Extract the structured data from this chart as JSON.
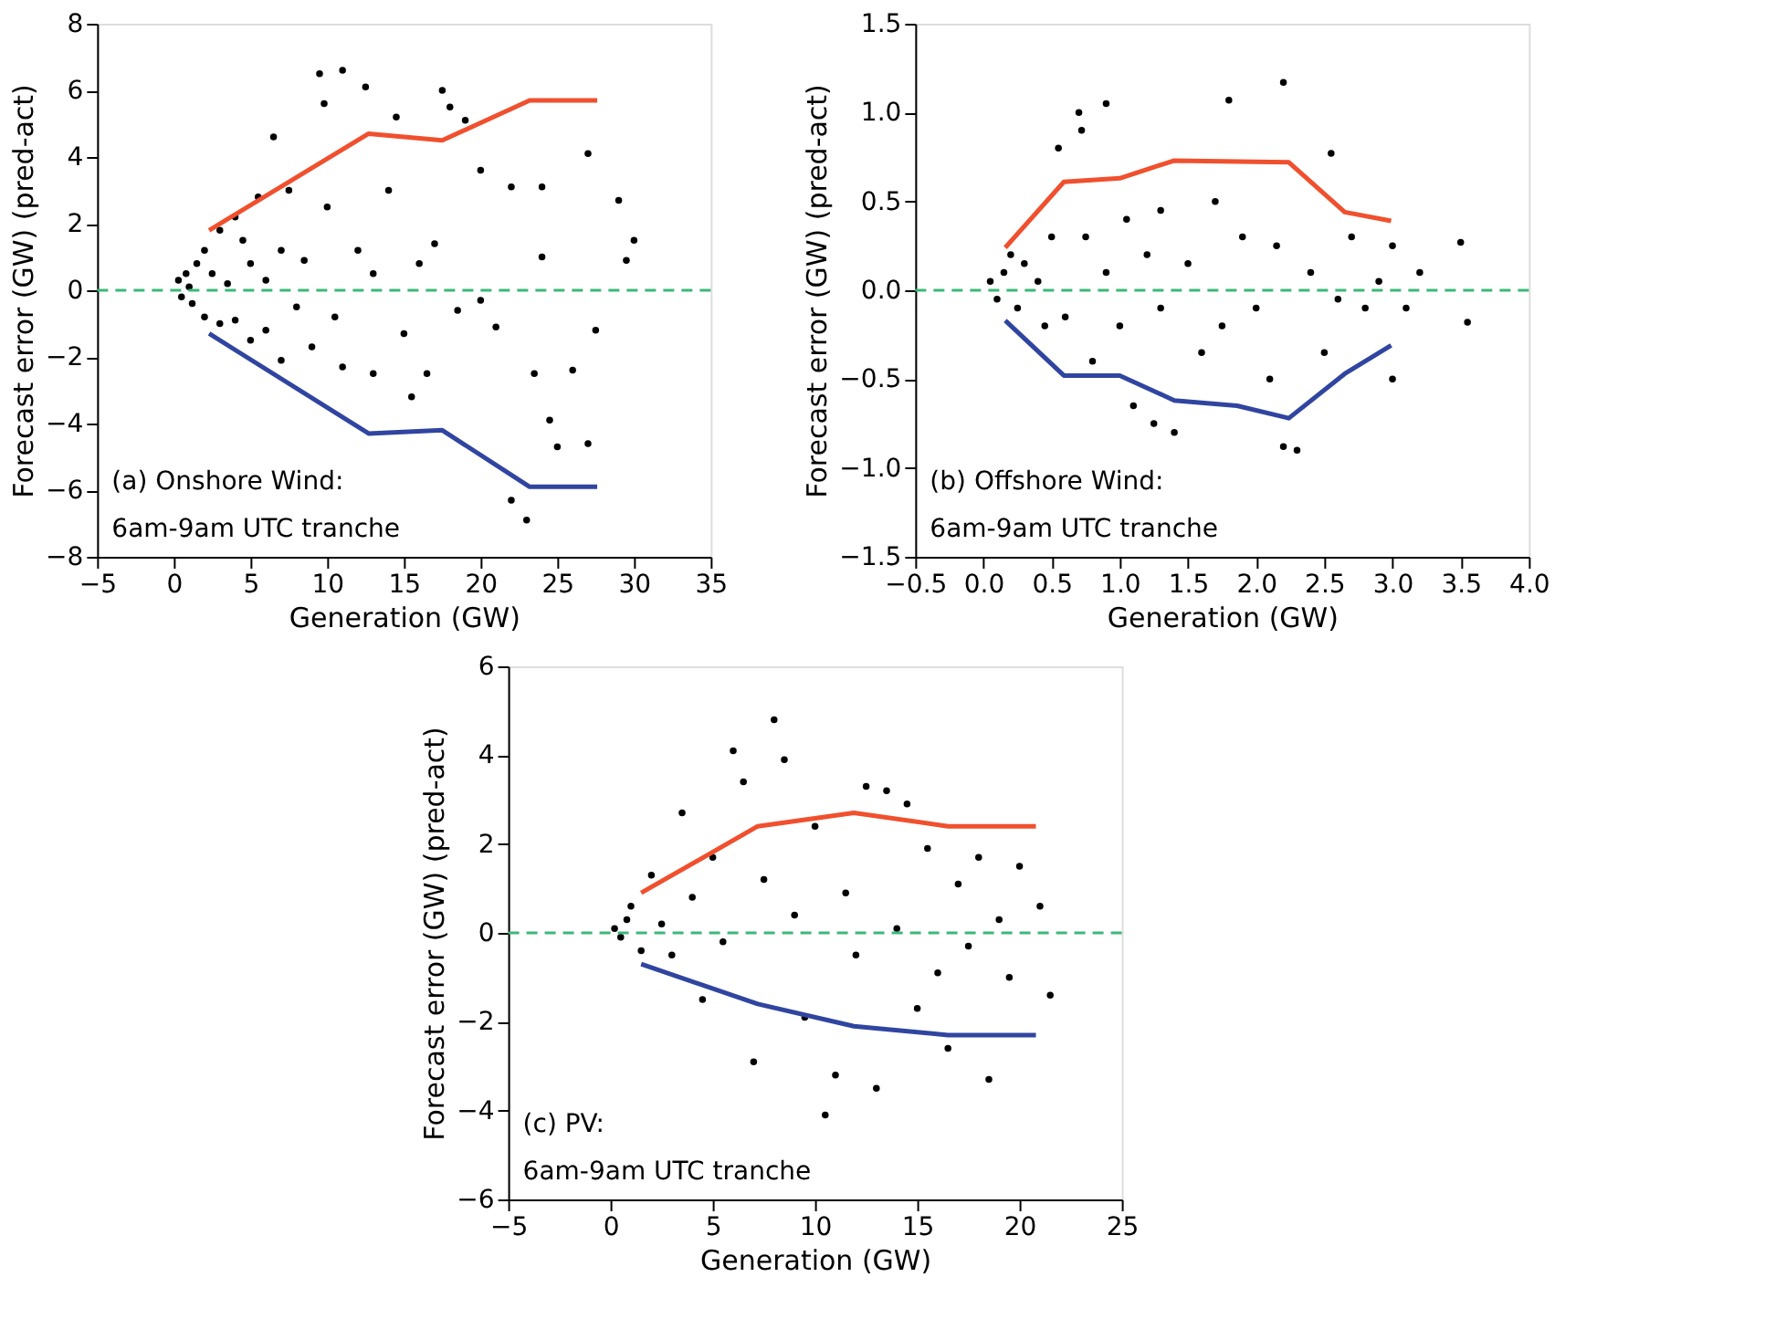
{
  "chart_data": [
    {
      "type": "scatter",
      "xlabel": "Generation (GW)",
      "ylabel": "Forecast error (GW) (pred-act)",
      "annotations": [
        "(a) Onshore Wind:",
        "6am-9am UTC tranche"
      ],
      "xlim": [
        -5,
        35
      ],
      "xticks": [
        -5,
        0,
        5,
        10,
        15,
        20,
        25,
        30,
        35
      ],
      "ylim": [
        -8,
        8
      ],
      "yticks": [
        -8,
        -6,
        -4,
        -2,
        0,
        2,
        4,
        6,
        8
      ],
      "grid": false,
      "ref_lines": [
        {
          "axis": "y",
          "value": 0,
          "color": "#3cb878",
          "line_style": "dashed"
        }
      ],
      "series": [
        {
          "type": "scatter",
          "color": "#000000",
          "x": [
            0.3,
            0.5,
            0.8,
            1,
            1.2,
            1.5,
            2,
            2,
            2.5,
            3,
            3,
            3.5,
            4,
            4,
            4.5,
            5,
            5,
            5.5,
            6,
            6,
            6.5,
            7,
            7,
            7.5,
            8,
            8.5,
            9,
            9.5,
            9.8,
            10,
            10.5,
            11,
            11,
            12,
            12.5,
            13,
            13,
            14,
            14.5,
            15,
            15.5,
            16,
            16.5,
            17,
            17.5,
            18,
            18.5,
            19,
            20,
            20,
            21,
            22,
            22,
            23,
            23.5,
            24,
            24,
            24.5,
            25,
            26,
            27,
            27,
            27.5,
            29,
            30,
            29.5
          ],
          "values": [
            0.3,
            -0.2,
            0.5,
            0.1,
            -0.4,
            0.8,
            1.2,
            -0.8,
            0.5,
            1.8,
            -1,
            0.2,
            2.2,
            -0.9,
            1.5,
            0.8,
            -1.5,
            2.8,
            0.3,
            -1.2,
            4.6,
            1.2,
            -2.1,
            3,
            -0.5,
            0.9,
            -1.7,
            6.5,
            5.6,
            2.5,
            -0.8,
            6.6,
            -2.3,
            1.2,
            6.1,
            0.5,
            -2.5,
            3,
            5.2,
            -1.3,
            -3.2,
            0.8,
            -2.5,
            1.4,
            6,
            5.5,
            -0.6,
            5.1,
            3.6,
            -0.3,
            -1.1,
            3.1,
            -6.3,
            -6.9,
            -2.5,
            3.1,
            1,
            -3.9,
            -4.7,
            -2.4,
            4.1,
            -4.6,
            -1.2,
            2.7,
            1.5,
            0.9
          ]
        },
        {
          "type": "line",
          "color": "#f0502e",
          "x": [
            2.3,
            12.7,
            17.5,
            23.2,
            27.6
          ],
          "values": [
            1.8,
            4.7,
            4.5,
            5.7,
            5.7
          ]
        },
        {
          "type": "line",
          "color": "#3045a0",
          "x": [
            2.3,
            12.7,
            17.5,
            23.2,
            27.6
          ],
          "values": [
            -1.3,
            -4.3,
            -4.2,
            -5.9,
            -5.9
          ]
        }
      ]
    },
    {
      "type": "scatter",
      "xlabel": "Generation (GW)",
      "ylabel": "Forecast error (GW) (pred-act)",
      "annotations": [
        "(b) Offshore Wind:",
        "6am-9am UTC tranche"
      ],
      "xlim": [
        -0.5,
        4
      ],
      "xticks": [
        {
          "value": -0.5,
          "label": "−0.5"
        },
        {
          "value": 0,
          "label": "0.0"
        },
        {
          "value": 0.5,
          "label": "0.5"
        },
        {
          "value": 1,
          "label": "1.0"
        },
        {
          "value": 1.5,
          "label": "1.5"
        },
        {
          "value": 2,
          "label": "2.0"
        },
        {
          "value": 2.5,
          "label": "2.5"
        },
        {
          "value": 3,
          "label": "3.0"
        },
        {
          "value": 3.5,
          "label": "3.5"
        },
        {
          "value": 4,
          "label": "4.0"
        }
      ],
      "ylim": [
        -1.5,
        1.5
      ],
      "yticks": [
        {
          "value": -1.5,
          "label": "−1.5"
        },
        {
          "value": -1,
          "label": "−1.0"
        },
        {
          "value": -0.5,
          "label": "−0.5"
        },
        {
          "value": 0,
          "label": "0.0"
        },
        {
          "value": 0.5,
          "label": "0.5"
        },
        {
          "value": 1,
          "label": "1.0"
        },
        {
          "value": 1.5,
          "label": "1.5"
        }
      ],
      "grid": false,
      "ref_lines": [
        {
          "axis": "y",
          "value": 0,
          "color": "#3cb878",
          "line_style": "dashed"
        }
      ],
      "series": [
        {
          "type": "scatter",
          "color": "#000000",
          "x": [
            0.05,
            0.1,
            0.15,
            0.2,
            0.25,
            0.3,
            0.4,
            0.45,
            0.5,
            0.55,
            0.6,
            0.7,
            0.72,
            0.75,
            0.8,
            0.9,
            0.9,
            1.0,
            1.05,
            1.1,
            1.2,
            1.25,
            1.3,
            1.3,
            1.4,
            1.5,
            1.6,
            1.7,
            1.75,
            1.8,
            1.9,
            2.0,
            2.1,
            2.15,
            2.2,
            2.2,
            2.3,
            2.4,
            2.5,
            2.55,
            2.6,
            2.7,
            2.8,
            2.9,
            3.0,
            3.0,
            3.1,
            3.2,
            3.5,
            3.55
          ],
          "values": [
            0.05,
            -0.05,
            0.1,
            0.2,
            -0.1,
            0.15,
            0.05,
            -0.2,
            0.3,
            0.8,
            -0.15,
            1.0,
            0.9,
            0.3,
            -0.4,
            1.05,
            0.1,
            -0.2,
            0.4,
            -0.65,
            0.2,
            -0.75,
            0.45,
            -0.1,
            -0.8,
            0.15,
            -0.35,
            0.5,
            -0.2,
            1.07,
            0.3,
            -0.1,
            -0.5,
            0.25,
            1.17,
            -0.88,
            -0.9,
            0.1,
            -0.35,
            0.77,
            -0.05,
            0.3,
            -0.1,
            0.05,
            0.25,
            -0.5,
            -0.1,
            0.1,
            0.27,
            -0.18
          ]
        },
        {
          "type": "line",
          "color": "#f0502e",
          "x": [
            0.16,
            0.59,
            1.0,
            1.4,
            2.24,
            2.65,
            2.99
          ],
          "values": [
            0.24,
            0.61,
            0.63,
            0.73,
            0.72,
            0.44,
            0.39
          ]
        },
        {
          "type": "line",
          "color": "#3045a0",
          "x": [
            0.16,
            0.59,
            1.0,
            1.4,
            1.86,
            2.24,
            2.65,
            2.99
          ],
          "values": [
            -0.17,
            -0.48,
            -0.48,
            -0.62,
            -0.65,
            -0.72,
            -0.47,
            -0.31
          ]
        }
      ]
    },
    {
      "type": "scatter",
      "xlabel": "Generation (GW)",
      "ylabel": "Forecast error (GW) (pred-act)",
      "annotations": [
        "(c) PV:",
        "6am-9am UTC tranche"
      ],
      "xlim": [
        -5,
        25
      ],
      "xticks": [
        -5,
        0,
        5,
        10,
        15,
        20,
        25
      ],
      "ylim": [
        -6,
        6
      ],
      "yticks": [
        -6,
        -4,
        -2,
        0,
        2,
        4,
        6
      ],
      "grid": false,
      "ref_lines": [
        {
          "axis": "y",
          "value": 0,
          "color": "#3cb878",
          "line_style": "dashed"
        }
      ],
      "series": [
        {
          "type": "scatter",
          "color": "#000000",
          "x": [
            0.2,
            0.5,
            0.8,
            1,
            1.5,
            2,
            2.5,
            3,
            3.5,
            4,
            4.5,
            5,
            5.5,
            6,
            6.5,
            7,
            7.5,
            8,
            8.5,
            9,
            9.5,
            10,
            10.5,
            11,
            11.5,
            12,
            12.5,
            13,
            13.5,
            14,
            14.5,
            15,
            15.5,
            16,
            16.5,
            17,
            17.5,
            18,
            18.5,
            19,
            19.5,
            20,
            21,
            21.5
          ],
          "values": [
            0.1,
            -0.1,
            0.3,
            0.6,
            -0.4,
            1.3,
            0.2,
            -0.5,
            2.7,
            0.8,
            -1.5,
            1.7,
            -0.2,
            4.1,
            3.4,
            -2.9,
            1.2,
            4.8,
            3.9,
            0.4,
            -1.9,
            2.4,
            -4.1,
            -3.2,
            0.9,
            -0.5,
            3.3,
            -3.5,
            3.2,
            0.1,
            2.9,
            -1.7,
            1.9,
            -0.9,
            -2.6,
            1.1,
            -0.3,
            1.7,
            -3.3,
            0.3,
            -1,
            1.5,
            0.6,
            -1.4
          ]
        },
        {
          "type": "line",
          "color": "#f0502e",
          "x": [
            1.5,
            7.2,
            11.9,
            16.5,
            20.8
          ],
          "values": [
            0.9,
            2.4,
            2.7,
            2.4,
            2.4
          ]
        },
        {
          "type": "line",
          "color": "#3045a0",
          "x": [
            1.5,
            7.2,
            11.9,
            16.5,
            20.8
          ],
          "values": [
            -0.7,
            -1.6,
            -2.1,
            -2.3,
            -2.3
          ]
        }
      ]
    }
  ]
}
